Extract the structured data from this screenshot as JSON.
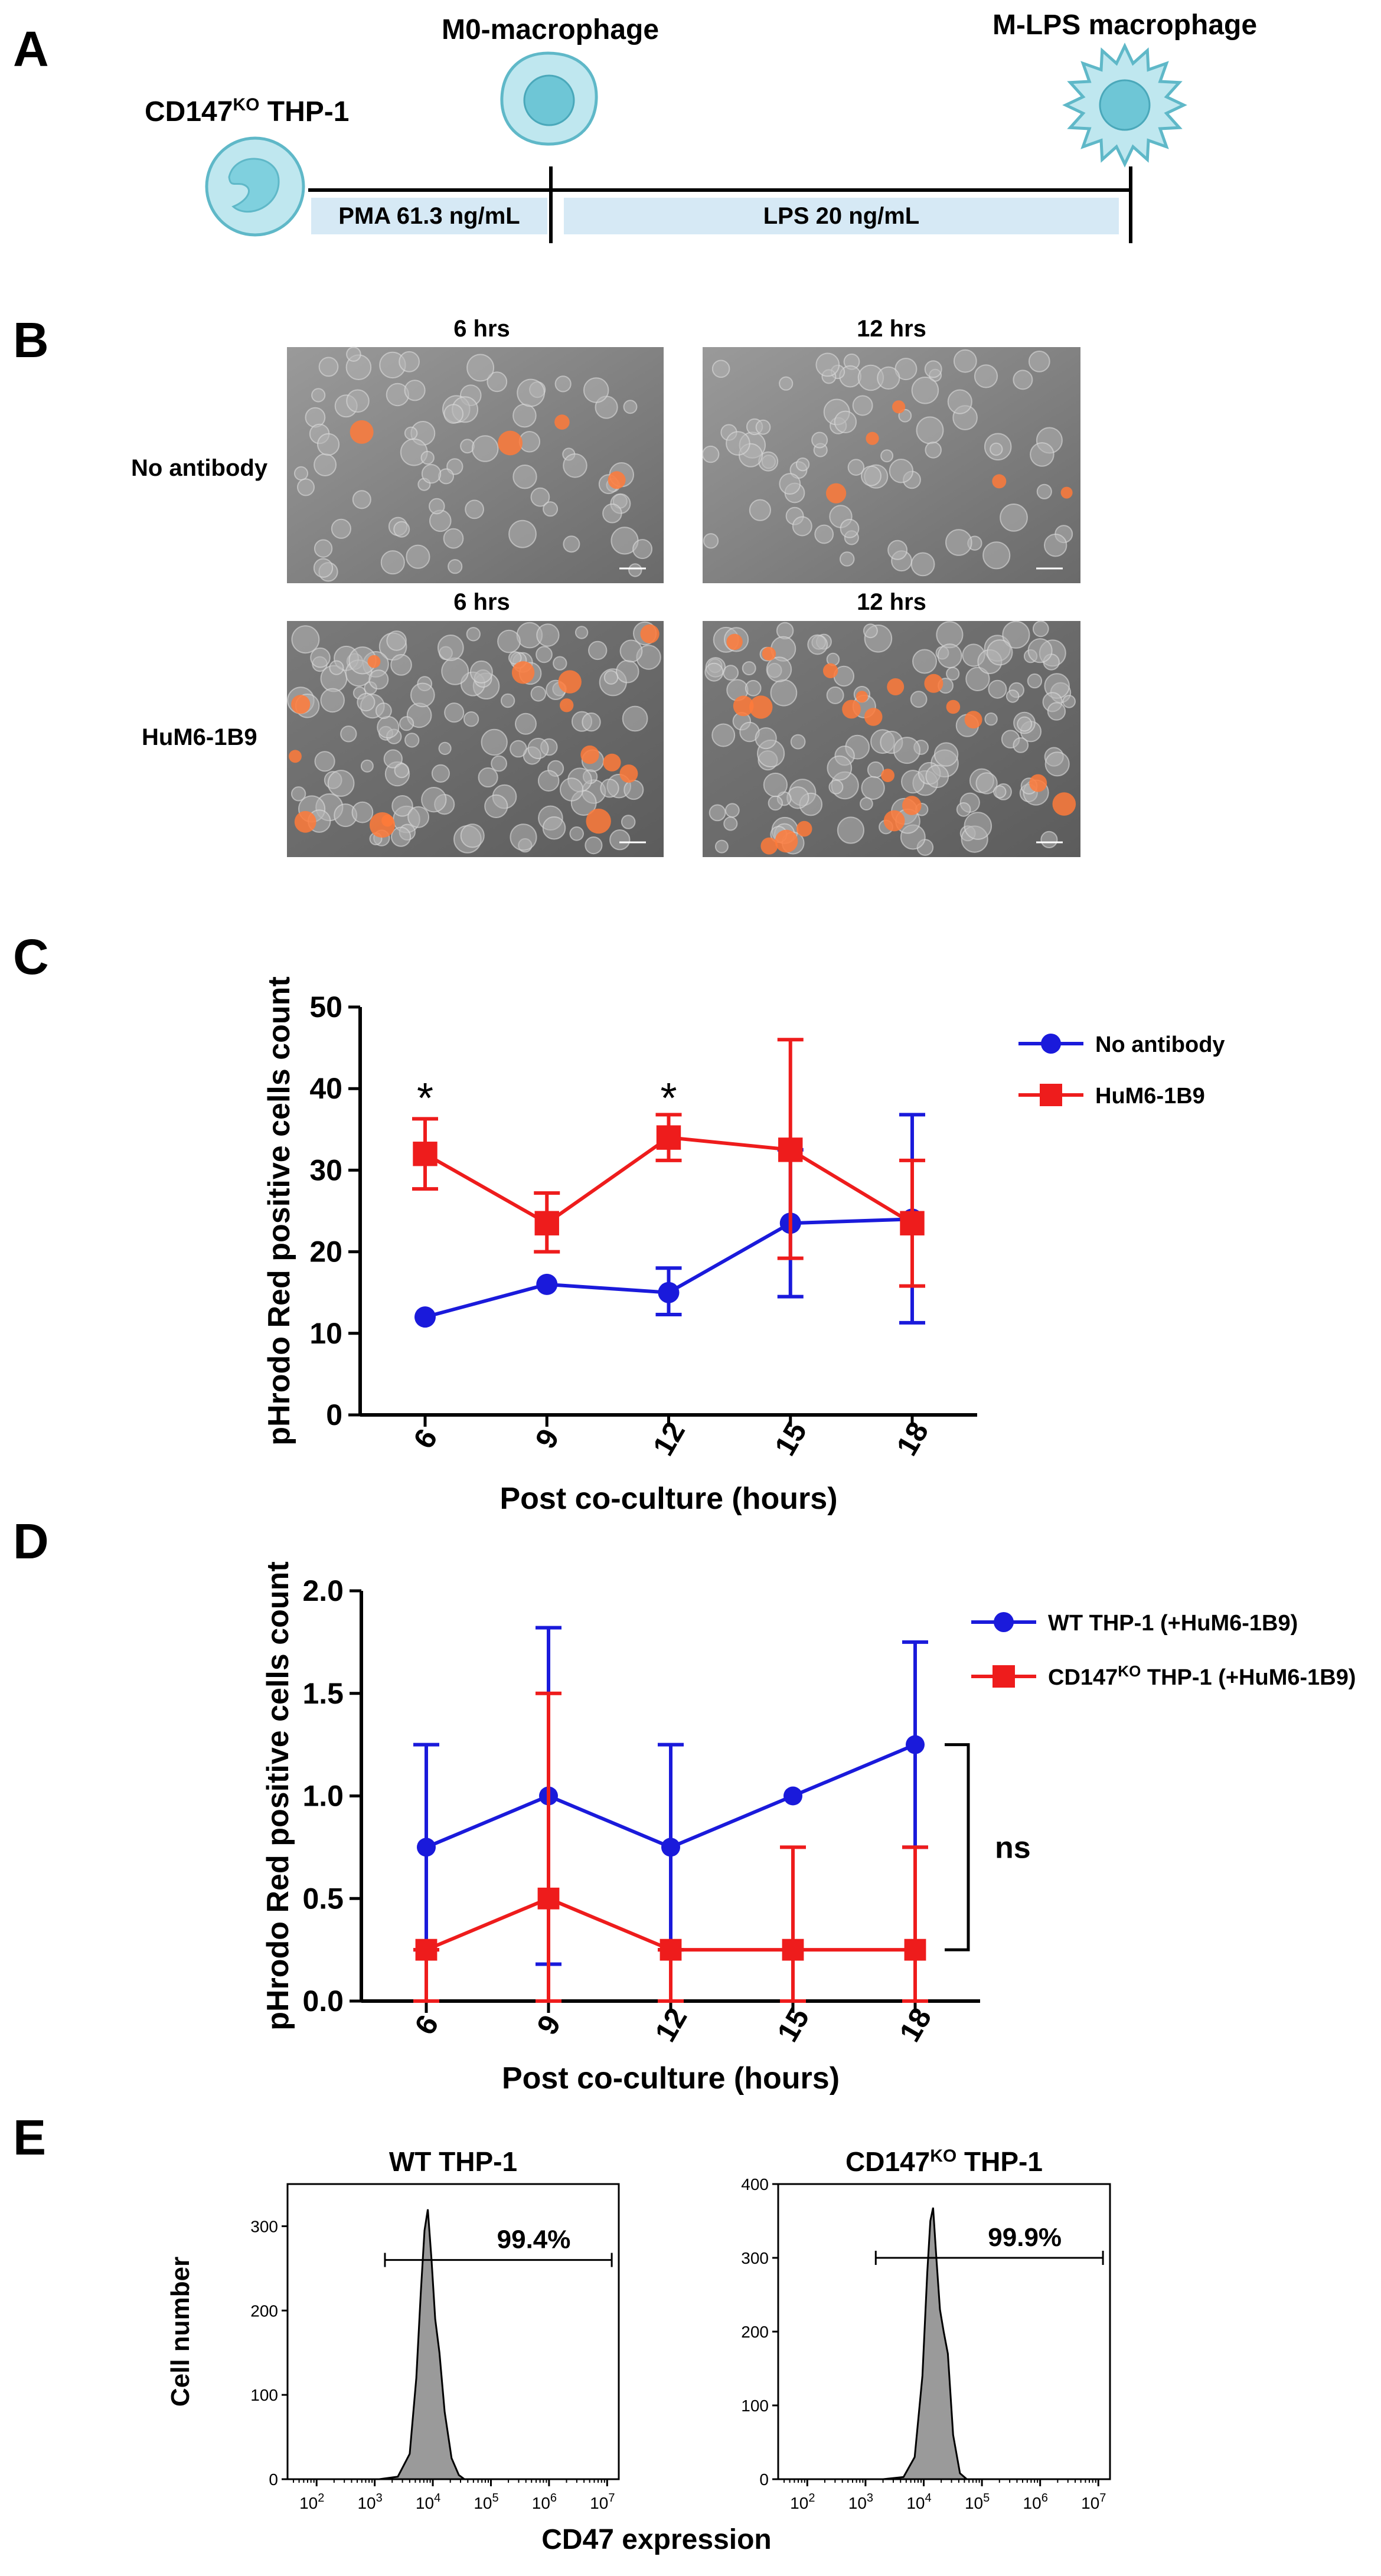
{
  "panels": {
    "A": {
      "letter": "A",
      "cells": [
        {
          "label": "CD147",
          "sup": "KO",
          "suffix": " THP-1"
        },
        {
          "label": "M0-macrophage"
        },
        {
          "label": "M-LPS macrophage"
        }
      ],
      "treatments": [
        "PMA 61.3 ng/mL",
        "LPS 20 ng/mL"
      ],
      "colors": {
        "cell_fill": "#bfe7ef",
        "cell_stroke": "#5fb8c8",
        "nucleus": "#6ec6d6",
        "bar": "#d6e9f5"
      }
    },
    "B": {
      "letter": "B",
      "rows": [
        "No antibody",
        "HuM6-1B9"
      ],
      "columns": [
        "6 hrs",
        "12 hrs"
      ],
      "colors": {
        "background": "#7d7d7d",
        "cell": "#b5b5b5",
        "signal": "#ff7a3a"
      }
    },
    "C": {
      "letter": "C"
    },
    "D": {
      "letter": "D",
      "significance": "ns"
    },
    "E": {
      "letter": "E"
    }
  },
  "chart_data": [
    {
      "panel": "C",
      "type": "line",
      "xlabel": "Post co-culture (hours)",
      "ylabel": "pHrodo Red positive cells count",
      "x": [
        6,
        9,
        12,
        15,
        18
      ],
      "xticks": [
        "6",
        "9",
        "12",
        "15",
        "18"
      ],
      "ylim": [
        0,
        50
      ],
      "yticks": [
        "0",
        "10",
        "20",
        "30",
        "40",
        "50"
      ],
      "legend_position": "top-right",
      "series": [
        {
          "name": "No antibody",
          "color": "#1a1adb",
          "marker": "circle",
          "values": [
            12,
            16,
            15,
            23.5,
            24
          ],
          "err_low": [
            12,
            16,
            12.3,
            14.5,
            11.3
          ],
          "err_high": [
            12,
            16,
            18,
            32.5,
            36.8
          ]
        },
        {
          "name": "HuM6-1B9",
          "color": "#ee1c1c",
          "marker": "square",
          "values": [
            32,
            23.5,
            34,
            32.5,
            23.5
          ],
          "err_low": [
            27.7,
            20,
            31.2,
            19.2,
            15.8
          ],
          "err_high": [
            36.3,
            27.2,
            36.8,
            46,
            31.2
          ]
        }
      ],
      "annotations": [
        {
          "x": 6,
          "text": "*"
        },
        {
          "x": 12,
          "text": "*"
        }
      ]
    },
    {
      "panel": "D",
      "type": "line",
      "xlabel": "Post co-culture (hours)",
      "ylabel": "pHrodo Red positive cells count",
      "x": [
        6,
        9,
        12,
        15,
        18
      ],
      "xticks": [
        "6",
        "9",
        "12",
        "15",
        "18"
      ],
      "ylim": [
        0,
        2
      ],
      "yticks": [
        "0.0",
        "0.5",
        "1.0",
        "1.5",
        "2.0"
      ],
      "legend_position": "top-right",
      "series": [
        {
          "name": "WT THP-1 (+HuM6-1B9)",
          "color": "#1a1adb",
          "marker": "circle",
          "values": [
            0.75,
            1.0,
            0.75,
            1.0,
            1.25
          ],
          "err_low": [
            0.25,
            0.18,
            0.25,
            1.0,
            0.75
          ],
          "err_high": [
            1.25,
            1.82,
            1.25,
            1.0,
            1.75
          ]
        },
        {
          "name": "CD147",
          "name_sup": "KO",
          "name_suffix": " THP-1 (+HuM6-1B9)",
          "color": "#ee1c1c",
          "marker": "square",
          "values": [
            0.25,
            0.5,
            0.25,
            0.25,
            0.25
          ],
          "err_low": [
            0,
            0,
            0,
            0,
            0
          ],
          "err_high": [
            0.25,
            1.5,
            0.25,
            0.75,
            0.75
          ]
        }
      ],
      "bracket_label": "ns"
    },
    {
      "panel": "E-left",
      "type": "area",
      "title": "WT THP-1",
      "ylabel": "Cell number",
      "xlabel": "CD47 expression",
      "x_scale": "log",
      "xticks": [
        "10^2",
        "10^3",
        "10^4",
        "10^5",
        "10^6",
        "10^7"
      ],
      "ylim": [
        0,
        350
      ],
      "yticks": [
        "0",
        "100",
        "200",
        "300"
      ],
      "gate_label": "99.4%",
      "gate_range": [
        1500,
        12000000
      ],
      "peak": {
        "x": 8000,
        "count": 320
      },
      "histogram": {
        "x": [
          1200,
          2500,
          4000,
          5200,
          6200,
          7200,
          8200,
          9500,
          11000,
          13000,
          16000,
          21000,
          28000,
          35000
        ],
        "count": [
          0,
          3,
          30,
          120,
          220,
          295,
          320,
          260,
          190,
          150,
          80,
          25,
          5,
          0
        ]
      }
    },
    {
      "panel": "E-right",
      "type": "area",
      "title": "CD147",
      "title_sup": "KO",
      "title_suffix": " THP-1",
      "ylabel": "Cell number",
      "xlabel": "CD47 expression",
      "x_scale": "log",
      "xticks": [
        "10^2",
        "10^3",
        "10^4",
        "10^5",
        "10^6",
        "10^7"
      ],
      "ylim": [
        0,
        400
      ],
      "yticks": [
        "0",
        "100",
        "200",
        "300",
        "400"
      ],
      "gate_label": "99.9%",
      "gate_range": [
        1500,
        12000000
      ],
      "peak": {
        "x": 14000,
        "count": 368
      },
      "histogram": {
        "x": [
          2000,
          4500,
          7000,
          9500,
          11500,
          13000,
          14500,
          16500,
          19000,
          22000,
          26000,
          32000,
          42000,
          55000
        ],
        "count": [
          0,
          3,
          30,
          140,
          280,
          350,
          368,
          300,
          230,
          200,
          170,
          60,
          8,
          0
        ]
      }
    }
  ]
}
